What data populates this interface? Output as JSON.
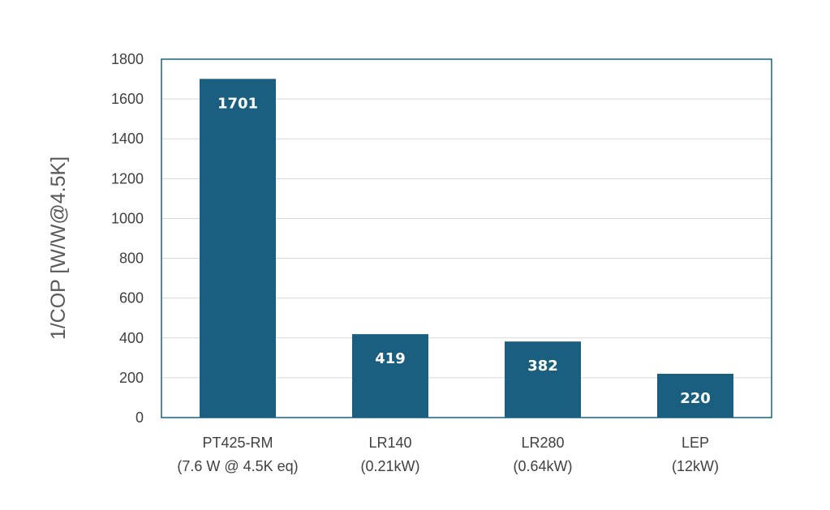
{
  "chart_data": {
    "type": "bar",
    "categories": [
      [
        "PT425-RM",
        "(7.6 W @ 4.5K eq)"
      ],
      [
        "LR140",
        "(0.21kW)"
      ],
      [
        "LR280",
        "(0.64kW)"
      ],
      [
        "LEP",
        "(12kW)"
      ]
    ],
    "values": [
      1701,
      419,
      382,
      220
    ],
    "data_labels": [
      "1701",
      "419",
      "382",
      "220"
    ],
    "title": "",
    "xlabel": "",
    "ylabel": "1/COP [W/W@4.5K]",
    "ylim": [
      0,
      1800
    ],
    "yticks": [
      0,
      200,
      400,
      600,
      800,
      1000,
      1200,
      1400,
      1600,
      1800
    ],
    "grid": true,
    "legend": "none",
    "colors": {
      "bar": "#1a5f80",
      "frame": "#1a5f80",
      "grid": "#d9d9d9",
      "text": "#404040"
    }
  }
}
